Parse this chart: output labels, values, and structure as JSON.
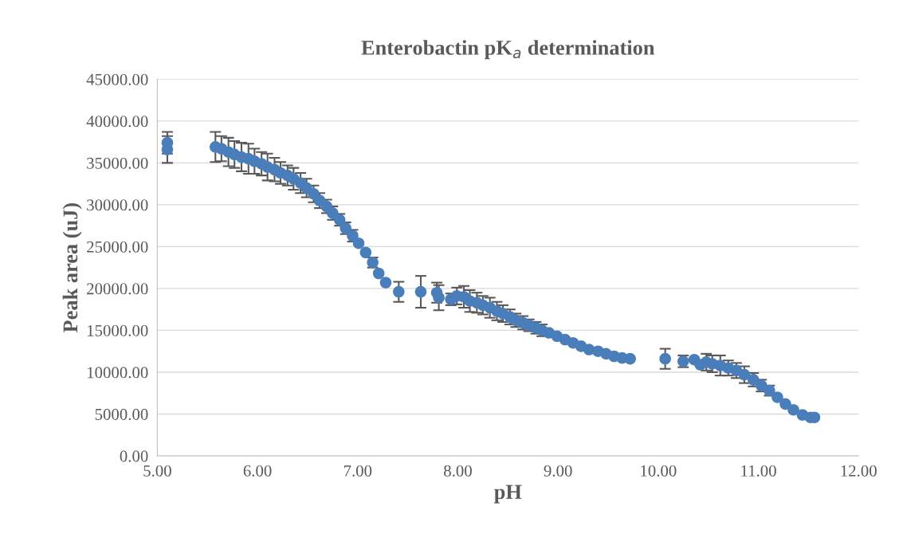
{
  "chart_data": {
    "type": "scatter",
    "title": "Enterobactin pK$_{a}$ determination",
    "xlabel": "pH",
    "ylabel": "Peak area (uJ)",
    "x": [
      5.1,
      5.1,
      5.58,
      5.64,
      5.71,
      5.77,
      5.84,
      5.91,
      5.97,
      6.04,
      6.1,
      6.17,
      6.23,
      6.3,
      6.36,
      6.43,
      6.49,
      6.56,
      6.62,
      6.69,
      6.75,
      6.82,
      6.88,
      6.95,
      7.01,
      7.08,
      7.15,
      7.21,
      7.28,
      7.41,
      7.63,
      7.79,
      7.81,
      7.93,
      7.99,
      8.06,
      8.12,
      8.19,
      8.25,
      8.32,
      8.39,
      8.45,
      8.52,
      8.58,
      8.65,
      8.71,
      8.78,
      8.84,
      8.91,
      8.99,
      9.07,
      9.15,
      9.23,
      9.31,
      9.4,
      9.48,
      9.56,
      9.64,
      9.72,
      10.07,
      10.25,
      10.36,
      10.42,
      10.48,
      10.54,
      10.62,
      10.7,
      10.78,
      10.86,
      10.95,
      11.03,
      11.11,
      11.19,
      11.27,
      11.35,
      11.44,
      11.52,
      11.56
    ],
    "series": [
      {
        "color": "#4a7ebb",
        "values": [
          37400,
          36600,
          36900,
          36700,
          36300,
          36000,
          35700,
          35500,
          35200,
          34900,
          34500,
          34200,
          33800,
          33500,
          33100,
          32600,
          32000,
          31300,
          30500,
          29800,
          29000,
          28200,
          27200,
          26300,
          25400,
          24300,
          23100,
          21800,
          20700,
          19600,
          19600,
          19500,
          18900,
          18700,
          19100,
          19000,
          18500,
          18300,
          18000,
          17700,
          17300,
          17000,
          16600,
          16200,
          15900,
          15600,
          15300,
          15000,
          14700,
          14300,
          13900,
          13500,
          13100,
          12700,
          12500,
          12200,
          11900,
          11700,
          11600,
          11600,
          11300,
          11500,
          10900,
          11200,
          11000,
          10800,
          10500,
          10200,
          9700,
          9100,
          8400,
          7800,
          7000,
          6200,
          5500,
          4900,
          4600,
          4600
        ],
        "errors": [
          1300,
          1600,
          1800,
          1500,
          1700,
          1600,
          1700,
          1800,
          1500,
          1400,
          1600,
          1400,
          1300,
          1200,
          1300,
          1200,
          1100,
          1000,
          900,
          800,
          800,
          700,
          700,
          700,
          null,
          null,
          600,
          null,
          null,
          1200,
          1900,
          1200,
          1500,
          700,
          1000,
          1300,
          1300,
          1200,
          1100,
          1200,
          1100,
          1000,
          900,
          800,
          800,
          700,
          700,
          700,
          null,
          null,
          null,
          null,
          null,
          null,
          null,
          null,
          null,
          null,
          null,
          1200,
          700,
          null,
          null,
          1000,
          1000,
          1200,
          900,
          900,
          1000,
          800,
          700,
          600,
          null,
          null,
          null,
          null,
          null,
          null
        ]
      }
    ],
    "xlim": [
      5,
      12
    ],
    "xticks": [
      {
        "value": 5,
        "label": "5.00"
      },
      {
        "value": 6,
        "label": "6.00"
      },
      {
        "value": 7,
        "label": "7.00"
      },
      {
        "value": 8,
        "label": "8.00"
      },
      {
        "value": 9,
        "label": "9.00"
      },
      {
        "value": 10,
        "label": "10.00"
      },
      {
        "value": 11,
        "label": "11.00"
      },
      {
        "value": 12,
        "label": "12.00"
      }
    ],
    "ylim": [
      0,
      45000
    ],
    "yticks": [
      {
        "value": 0,
        "label": "0.00"
      },
      {
        "value": 5000,
        "label": "5000.00"
      },
      {
        "value": 10000,
        "label": "10000.00"
      },
      {
        "value": 15000,
        "label": "15000.00"
      },
      {
        "value": 20000,
        "label": "20000.00"
      },
      {
        "value": 25000,
        "label": "25000.00"
      },
      {
        "value": 30000,
        "label": "30000.00"
      },
      {
        "value": 35000,
        "label": "35000.00"
      },
      {
        "value": 40000,
        "label": "40000.00"
      },
      {
        "value": 45000,
        "label": "45000.00"
      }
    ],
    "grid": "y",
    "marker": "circle"
  }
}
